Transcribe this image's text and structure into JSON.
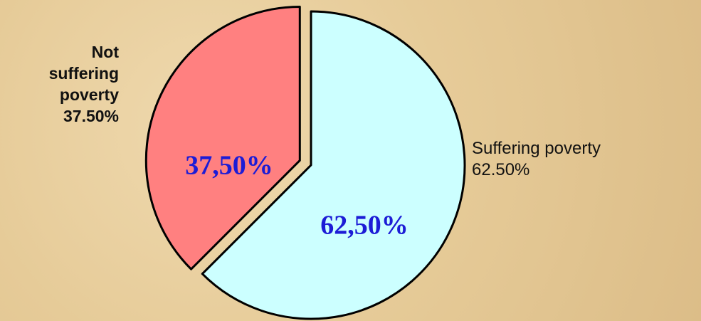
{
  "chart_data": {
    "type": "pie",
    "categories": [
      "Suffering poverty",
      "Not suffering poverty"
    ],
    "values": [
      62.5,
      37.5
    ],
    "value_labels": [
      "62,50%",
      "37,50%"
    ],
    "outer_labels": [
      "62.50%",
      "37.50%"
    ],
    "colors": [
      "#ccffff",
      "#ff8080"
    ],
    "exploded": [
      false,
      true
    ]
  }
}
